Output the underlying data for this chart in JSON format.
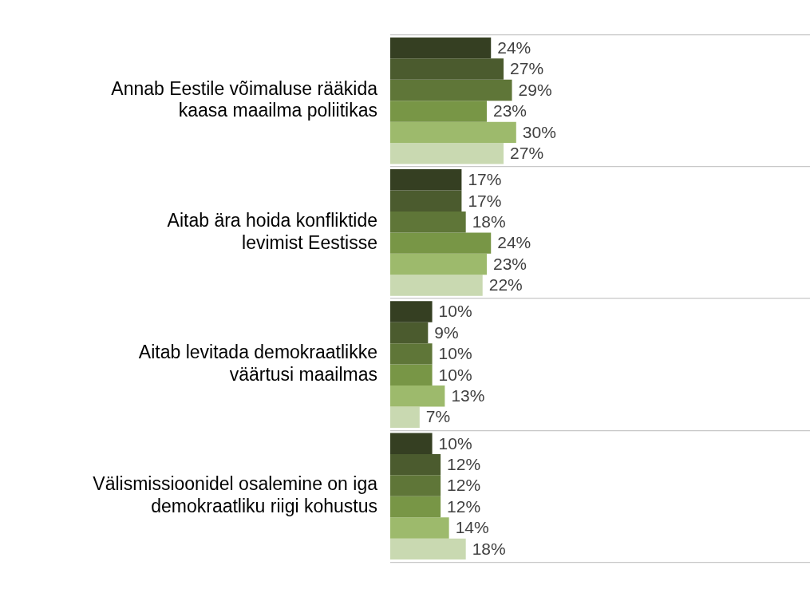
{
  "chart_data": {
    "type": "bar",
    "orientation": "horizontal",
    "categories": [
      "Annab Eestile võimaluse rääkida kaasa maailma poliitikas",
      "Aitab ära hoida konfliktide levimist Eestisse",
      "Aitab levitada demokraatlikke väärtusi maailmas",
      "Välismissioonidel osalemine on iga demokraatliku riigi kohustus"
    ],
    "series": [
      {
        "color": "#353f22",
        "values": [
          24,
          17,
          10,
          10
        ],
        "value_labels": [
          "24%",
          "17%",
          "10%",
          "10%"
        ]
      },
      {
        "color": "#4b5b2e",
        "values": [
          27,
          17,
          9,
          12
        ],
        "value_labels": [
          "27%",
          "17%",
          "9%",
          "12%"
        ]
      },
      {
        "color": "#5f7638",
        "values": [
          29,
          18,
          10,
          12
        ],
        "value_labels": [
          "29%",
          "18%",
          "10%",
          "12%"
        ]
      },
      {
        "color": "#789646",
        "values": [
          23,
          24,
          10,
          12
        ],
        "value_labels": [
          "23%",
          "24%",
          "10%",
          "12%"
        ]
      },
      {
        "color": "#9dba6c",
        "values": [
          30,
          23,
          13,
          14
        ],
        "value_labels": [
          "30%",
          "23%",
          "13%",
          "14%"
        ]
      },
      {
        "color": "#c9d9b1",
        "values": [
          27,
          22,
          7,
          18
        ],
        "value_labels": [
          "27%",
          "22%",
          "7%",
          "18%"
        ]
      }
    ],
    "xlim": [
      0,
      100
    ],
    "grid": "y",
    "legend": false,
    "tick_labels": "y"
  }
}
